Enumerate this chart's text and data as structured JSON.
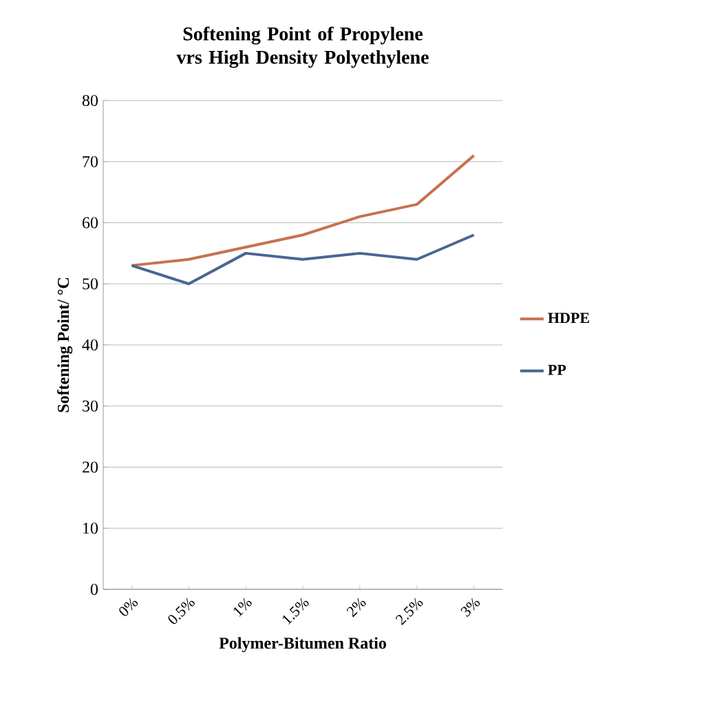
{
  "chart_data": {
    "type": "line",
    "title": "Softening Point of Propylene vrs High Density Polyethylene",
    "xlabel": "Polymer-Bitumen Ratio",
    "ylabel": "Softening Point/ °C",
    "categories": [
      "0%",
      "0.5%",
      "1%",
      "1.5%",
      "2%",
      "2.5%",
      "3%"
    ],
    "series": [
      {
        "name": "HDPE",
        "color": "#c8714f",
        "values": [
          53,
          54,
          56,
          58,
          61,
          63,
          71
        ]
      },
      {
        "name": "PP",
        "color": "#4a6591",
        "values": [
          53,
          50,
          55,
          54,
          55,
          54,
          58
        ]
      }
    ],
    "ylim": [
      0,
      80
    ],
    "yticks": [
      0,
      10,
      20,
      30,
      40,
      50,
      60,
      70,
      80
    ],
    "grid": "y",
    "legend": "right",
    "marker": "none",
    "line_style": "solid"
  }
}
